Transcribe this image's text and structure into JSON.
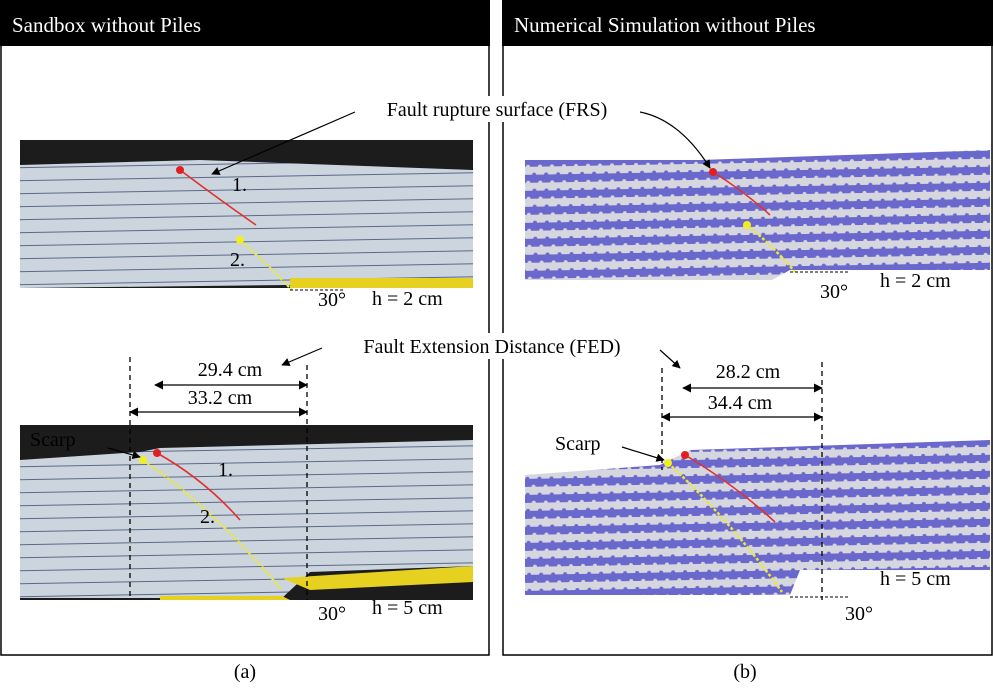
{
  "panels": [
    {
      "title": "Sandbox without Piles",
      "caption": "(a)",
      "top": {
        "labels": [
          "1.",
          "2."
        ],
        "angle": "30°",
        "height": "h = 2 cm"
      },
      "bottom": {
        "dimensions": [
          "29.4 cm",
          "33.2 cm"
        ],
        "scarp": "Scarp",
        "labels": [
          "1.",
          "2."
        ],
        "angle": "30°",
        "height": "h = 5 cm"
      }
    },
    {
      "title": "Numerical Simulation without Piles",
      "caption": "(b)",
      "top": {
        "angle": "30°",
        "height": "h = 2 cm"
      },
      "bottom": {
        "dimensions": [
          "28.2 cm",
          "34.4 cm"
        ],
        "scarp": "Scarp",
        "angle": "30°",
        "height": "h = 5 cm"
      }
    }
  ],
  "annotations": [
    "Fault rupture surface (FRS)",
    "Fault Extension Distance (FED)"
  ]
}
